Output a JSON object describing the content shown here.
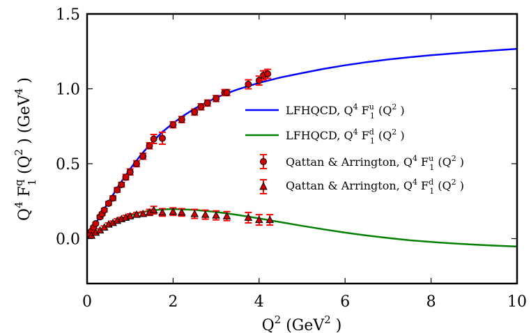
{
  "chart_data": {
    "type": "line",
    "xlabel": {
      "base": "Q",
      "sup1": "2",
      "mid": " (GeV",
      "sup2": "2",
      "end": " )"
    },
    "ylabel": {
      "p1": "Q",
      "s1": "4",
      "p2": " F",
      "sup2": "q",
      "sub2": "1",
      "p3": " (Q",
      "s3": "2",
      "p4": " ) (GeV",
      "s4": "4",
      "p5": " )"
    },
    "xlim": [
      0,
      10
    ],
    "ylim": [
      -0.3,
      1.5
    ],
    "x_ticks": [
      0,
      2,
      4,
      6,
      8,
      10
    ],
    "x_tick_labels": [
      "0",
      "2",
      "4",
      "6",
      "8",
      "10"
    ],
    "y_ticks": [
      0.0,
      0.5,
      1.0,
      1.5
    ],
    "y_tick_labels": [
      "0.0",
      "0.5",
      "1.0",
      "1.5"
    ],
    "grid": false,
    "legend_position": "center-right",
    "series": [
      {
        "kind": "line",
        "color": "#0000ff",
        "legend": {
          "pre": "LFHQCD, Q",
          "pow": "4",
          "fn": " F",
          "sup": "u",
          "sub": "1",
          "post": " (Q",
          "pow2": "2",
          "end": " )"
        },
        "x": [
          0,
          0.25,
          0.5,
          0.75,
          1.0,
          1.25,
          1.5,
          1.75,
          2.0,
          2.25,
          2.5,
          2.75,
          3.0,
          3.25,
          3.5,
          3.75,
          4.0,
          4.5,
          5.0,
          5.5,
          6.0,
          6.5,
          7.0,
          7.5,
          8.0,
          8.5,
          9.0,
          9.5,
          10.0
        ],
        "y": [
          0.0,
          0.125,
          0.245,
          0.36,
          0.465,
          0.558,
          0.64,
          0.712,
          0.77,
          0.822,
          0.868,
          0.905,
          0.94,
          0.97,
          0.996,
          1.018,
          1.04,
          1.076,
          1.105,
          1.133,
          1.157,
          1.178,
          1.196,
          1.211,
          1.224,
          1.236,
          1.247,
          1.257,
          1.267
        ]
      },
      {
        "kind": "line",
        "color": "#008000",
        "legend": {
          "pre": "LFHQCD, Q",
          "pow": "4",
          "fn": " F",
          "sup": "d",
          "sub": "1",
          "post": " (Q",
          "pow2": "2",
          "end": " )"
        },
        "x": [
          0,
          0.25,
          0.5,
          0.75,
          1.0,
          1.25,
          1.5,
          1.75,
          2.0,
          2.5,
          3.0,
          3.5,
          4.0,
          4.5,
          5.0,
          5.5,
          6.0,
          6.5,
          7.0,
          7.5,
          8.0,
          8.5,
          9.0,
          9.5,
          10.0
        ],
        "y": [
          0.0,
          0.05,
          0.093,
          0.128,
          0.155,
          0.175,
          0.188,
          0.195,
          0.197,
          0.192,
          0.178,
          0.158,
          0.135,
          0.11,
          0.085,
          0.062,
          0.04,
          0.021,
          0.004,
          -0.011,
          -0.022,
          -0.032,
          -0.04,
          -0.047,
          -0.053
        ]
      },
      {
        "kind": "scatter",
        "marker": "circle",
        "color": "#cc0000",
        "errorbar_color": "#ff0000",
        "legend": {
          "pre": "Qattan & Arrington, Q",
          "pow": "4",
          "fn": " F",
          "sup": "u",
          "sub": "1",
          "post": " (Q",
          "pow2": "2",
          "end": " )"
        },
        "points": [
          [
            0.05,
            0.025,
            0.005
          ],
          [
            0.1,
            0.05,
            0.006
          ],
          [
            0.15,
            0.075,
            0.007
          ],
          [
            0.2,
            0.1,
            0.008
          ],
          [
            0.3,
            0.145,
            0.01
          ],
          [
            0.35,
            0.165,
            0.01
          ],
          [
            0.4,
            0.19,
            0.012
          ],
          [
            0.5,
            0.235,
            0.012
          ],
          [
            0.6,
            0.27,
            0.015
          ],
          [
            0.7,
            0.325,
            0.015
          ],
          [
            0.8,
            0.36,
            0.015
          ],
          [
            0.9,
            0.41,
            0.018
          ],
          [
            1.0,
            0.445,
            0.02
          ],
          [
            1.15,
            0.5,
            0.02
          ],
          [
            1.3,
            0.55,
            0.02
          ],
          [
            1.45,
            0.62,
            0.02
          ],
          [
            1.55,
            0.665,
            0.03
          ],
          [
            1.75,
            0.67,
            0.04
          ],
          [
            2.0,
            0.76,
            0.02
          ],
          [
            2.2,
            0.795,
            0.02
          ],
          [
            2.5,
            0.845,
            0.02
          ],
          [
            2.65,
            0.88,
            0.02
          ],
          [
            2.8,
            0.905,
            0.02
          ],
          [
            3.0,
            0.935,
            0.02
          ],
          [
            3.2,
            0.975,
            0.02
          ],
          [
            3.25,
            0.975,
            0.02
          ],
          [
            3.75,
            1.03,
            0.03
          ],
          [
            4.0,
            1.055,
            0.03
          ],
          [
            4.1,
            1.09,
            0.03
          ],
          [
            4.2,
            1.1,
            0.03
          ]
        ]
      },
      {
        "kind": "scatter",
        "marker": "triangle",
        "color": "#000000",
        "fill": "#cc0000",
        "errorbar_color": "#ff0000",
        "legend": {
          "pre": "Qattan & Arrington, Q",
          "pow": "4",
          "fn": " F",
          "sup": "d",
          "sub": "1",
          "post": " (Q",
          "pow2": "2",
          "end": " )"
        },
        "points": [
          [
            0.1,
            0.02,
            0.01
          ],
          [
            0.2,
            0.04,
            0.01
          ],
          [
            0.3,
            0.055,
            0.01
          ],
          [
            0.4,
            0.075,
            0.01
          ],
          [
            0.5,
            0.095,
            0.01
          ],
          [
            0.6,
            0.105,
            0.012
          ],
          [
            0.7,
            0.12,
            0.012
          ],
          [
            0.8,
            0.13,
            0.012
          ],
          [
            0.9,
            0.14,
            0.015
          ],
          [
            1.0,
            0.15,
            0.015
          ],
          [
            1.15,
            0.16,
            0.015
          ],
          [
            1.3,
            0.165,
            0.015
          ],
          [
            1.45,
            0.175,
            0.02
          ],
          [
            1.55,
            0.19,
            0.025
          ],
          [
            1.75,
            0.175,
            0.025
          ],
          [
            2.0,
            0.18,
            0.025
          ],
          [
            2.2,
            0.175,
            0.025
          ],
          [
            2.5,
            0.165,
            0.03
          ],
          [
            2.75,
            0.16,
            0.03
          ],
          [
            3.0,
            0.155,
            0.03
          ],
          [
            3.25,
            0.15,
            0.03
          ],
          [
            3.75,
            0.14,
            0.035
          ],
          [
            4.0,
            0.125,
            0.035
          ],
          [
            4.25,
            0.125,
            0.035
          ]
        ]
      }
    ]
  }
}
